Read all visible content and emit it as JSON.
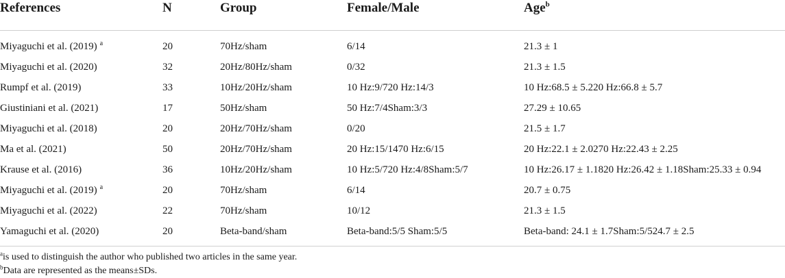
{
  "table": {
    "headers": {
      "references": "References",
      "n": "N",
      "group": "Group",
      "female_male": "Female/Male",
      "age": "Age",
      "age_sup": "b"
    },
    "rows": [
      {
        "ref": "Miyaguchi et al. (2019)",
        "sup": "a",
        "n": "20",
        "group": "70Hz/sham",
        "fm": "6/14",
        "age": "21.3 ± 1"
      },
      {
        "ref": "Miyaguchi et al. (2020)",
        "sup": "",
        "n": "32",
        "group": "20Hz/80Hz/sham",
        "fm": "0/32",
        "age": "21.3 ± 1.5"
      },
      {
        "ref": "Rumpf et al. (2019)",
        "sup": "",
        "n": "33",
        "group": "10Hz/20Hz/sham",
        "fm": "10 Hz:9/720 Hz:14/3",
        "age": "10 Hz:68.5 ± 5.220 Hz:66.8 ± 5.7"
      },
      {
        "ref": "Giustiniani et al. (2021)",
        "sup": "",
        "n": "17",
        "group": "50Hz/sham",
        "fm": "50 Hz:7/4Sham:3/3",
        "age": "27.29 ± 10.65"
      },
      {
        "ref": "Miyaguchi et al. (2018)",
        "sup": "",
        "n": "20",
        "group": "20Hz/70Hz/sham",
        "fm": "0/20",
        "age": "21.5 ± 1.7"
      },
      {
        "ref": "Ma et al. (2021)",
        "sup": "",
        "n": "50",
        "group": "20Hz/70Hz/sham",
        "fm": "20 Hz:15/1470 Hz:6/15",
        "age": "20 Hz:22.1 ± 2.0270 Hz:22.43 ± 2.25"
      },
      {
        "ref": "Krause et al. (2016)",
        "sup": "",
        "n": "36",
        "group": "10Hz/20Hz/sham",
        "fm": "10 Hz:5/720 Hz:4/8Sham:5/7",
        "age": "10 Hz:26.17 ± 1.1820 Hz:26.42 ± 1.18Sham:25.33 ± 0.94"
      },
      {
        "ref": "Miyaguchi et al. (2019)",
        "sup": "a",
        "n": "20",
        "group": "70Hz/sham",
        "fm": "6/14",
        "age": "20.7 ± 0.75"
      },
      {
        "ref": "Miyaguchi et al. (2022)",
        "sup": "",
        "n": "22",
        "group": "70Hz/sham",
        "fm": "10/12",
        "age": "21.3 ± 1.5"
      },
      {
        "ref": "Yamaguchi et al. (2020)",
        "sup": "",
        "n": "20",
        "group": "Beta-band/sham",
        "fm": "Beta-band:5/5 Sham:5/5",
        "age": "Beta-band: 24.1 ± 1.7Sham:5/524.7 ± 2.5"
      }
    ]
  },
  "footnotes": [
    {
      "mark": "a",
      "text": "is used to distinguish the author who published two articles in the same year."
    },
    {
      "mark": "b",
      "text": "Data are represented as the means±SDs."
    }
  ]
}
